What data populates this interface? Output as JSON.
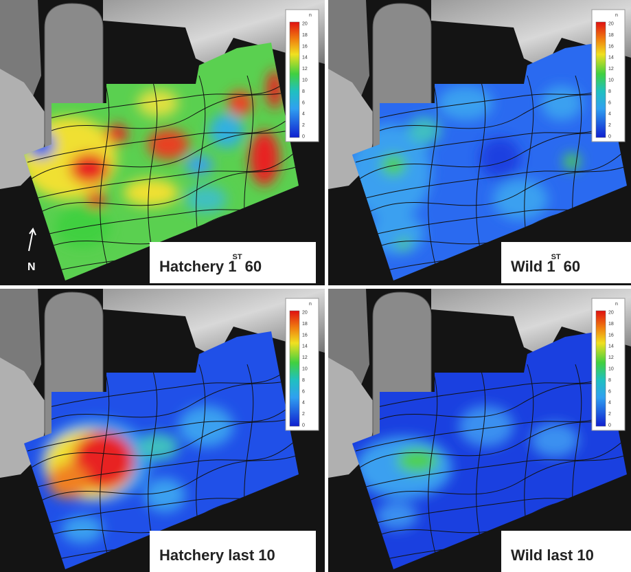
{
  "compass": "N",
  "colorbar": {
    "title": "n",
    "ticks": [
      20,
      18,
      16,
      14,
      12,
      10,
      8,
      6,
      4,
      2,
      0
    ]
  },
  "panels": [
    {
      "label": "Hatchery 1",
      "superscript": "ST",
      "suffix": "60"
    },
    {
      "label": "Wild 1",
      "superscript": "ST",
      "suffix": "60"
    },
    {
      "label": "Hatchery last 10"
    },
    {
      "label": "Wild last 10"
    }
  ]
}
